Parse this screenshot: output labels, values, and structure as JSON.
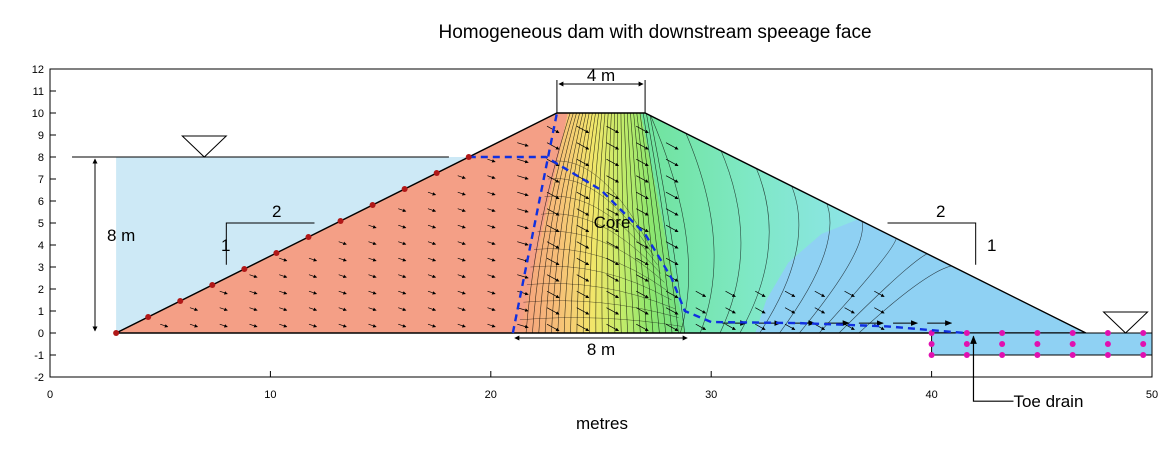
{
  "title": "Homogeneous dam with downstream speeage face",
  "x_axis": {
    "label": "metres",
    "min": 0,
    "max": 50,
    "ticks": [
      "0",
      "10",
      "20",
      "30",
      "40",
      "50"
    ],
    "tick_values": [
      0,
      10,
      20,
      30,
      40,
      50
    ]
  },
  "y_axis": {
    "min": -2,
    "max": 12,
    "ticks": [
      "12",
      "11",
      "10",
      "9",
      "8",
      "7",
      "6",
      "5",
      "4",
      "3",
      "2",
      "1",
      "0",
      "-1",
      "-2"
    ],
    "tick_values": [
      12,
      11,
      10,
      9,
      8,
      7,
      6,
      5,
      4,
      3,
      2,
      1,
      0,
      -1,
      -2
    ]
  },
  "annotations": {
    "crest_width": "4 m",
    "base_width": "8 m",
    "reservoir_depth": "8 m",
    "core": "Core",
    "upstream_slope_h": "2",
    "upstream_slope_v": "1",
    "downstream_slope_h": "2",
    "downstream_slope_v": "1",
    "toe_drain": "Toe drain"
  },
  "colors": {
    "reservoir": "#cde9f6",
    "upstream_shell": "#f49f86",
    "downstream_shell": "#8fd1f3",
    "drain": "#8fd1f3",
    "phreatic_line": "#1030e0",
    "nodes_upstream": "#b01818",
    "nodes_drain": "#e010b0"
  },
  "geometry_data": {
    "dam_polygon": [
      [
        3,
        0
      ],
      [
        23,
        10
      ],
      [
        27,
        10
      ],
      [
        47,
        0
      ]
    ],
    "reservoir_level": 8,
    "core_polygon": [
      [
        21,
        0
      ],
      [
        23,
        10
      ],
      [
        27,
        10
      ],
      [
        29,
        0
      ]
    ],
    "drain_rect": [
      [
        40,
        -1
      ],
      [
        50,
        0
      ]
    ],
    "phreatic_line": [
      [
        19,
        8
      ],
      [
        22.5,
        8
      ],
      [
        25,
        6.5
      ],
      [
        27,
        4.5
      ],
      [
        28.2,
        2.5
      ],
      [
        28.8,
        1
      ],
      [
        30,
        0.5
      ],
      [
        34,
        0.45
      ],
      [
        38,
        0.3
      ],
      [
        41.5,
        0
      ]
    ],
    "core_boundary_line": [
      [
        21,
        0
      ],
      [
        23,
        10
      ]
    ]
  }
}
